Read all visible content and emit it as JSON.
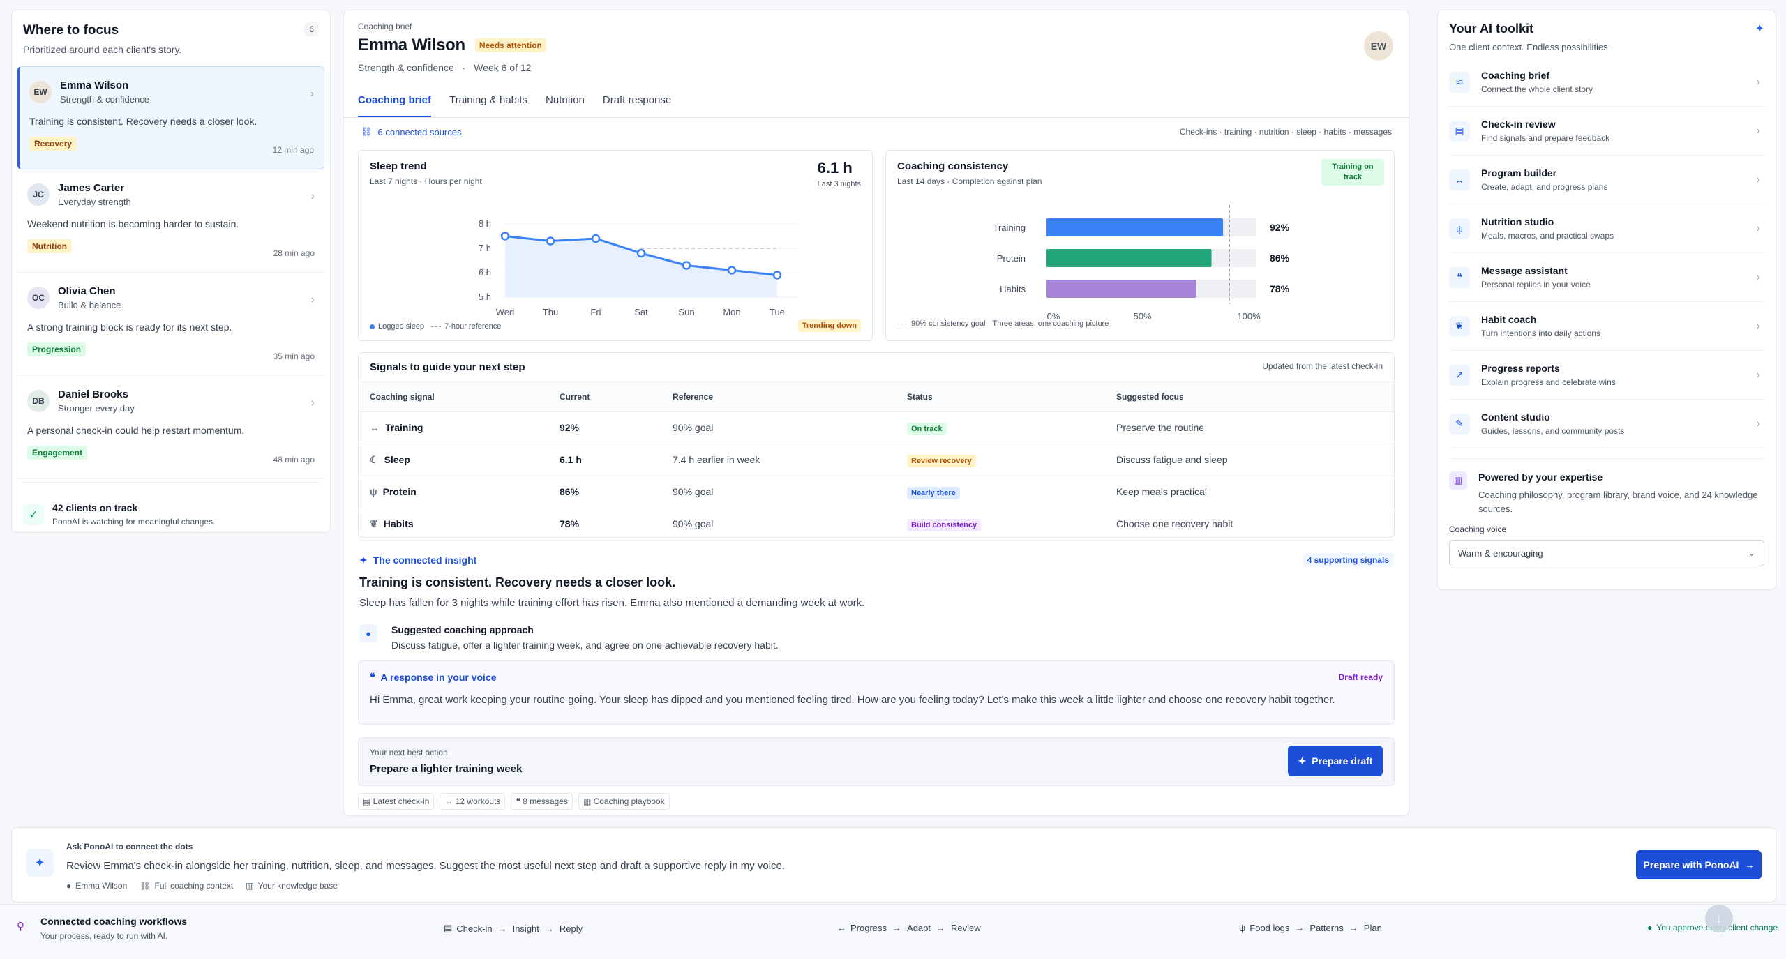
{
  "left": {
    "title": "Where to focus",
    "subtitle": "Prioritized around each client's story.",
    "count": "6",
    "clients": [
      {
        "initials": "EW",
        "name": "Emma Wilson",
        "program": "Strength & confidence",
        "message": "Training is consistent. Recovery needs a closer look.",
        "tag": "Recovery",
        "time": "12 min ago",
        "tag_bg": "#fef3c7",
        "tag_color": "#92400e",
        "avatar_bg": "#ede4d6"
      },
      {
        "initials": "JC",
        "name": "James Carter",
        "program": "Everyday strength",
        "message": "Weekend nutrition is becoming harder to sustain.",
        "tag": "Nutrition",
        "time": "28 min ago",
        "tag_bg": "#fef3c7",
        "tag_color": "#92400e",
        "avatar_bg": "#e0e7f1"
      },
      {
        "initials": "OC",
        "name": "Olivia Chen",
        "program": "Build & balance",
        "message": "A strong training block is ready for its next step.",
        "tag": "Progression",
        "time": "35 min ago",
        "tag_bg": "#dcfce7",
        "tag_color": "#15803d",
        "avatar_bg": "#e8e4f3"
      },
      {
        "initials": "DB",
        "name": "Daniel Brooks",
        "program": "Stronger every day",
        "message": "A personal check-in could help restart momentum.",
        "tag": "Engagement",
        "time": "48 min ago",
        "tag_bg": "#dcfce7",
        "tag_color": "#15803d",
        "avatar_bg": "#e1ece6"
      }
    ],
    "on_track_title": "42 clients on track",
    "on_track_sub": "PonoAI is watching for meaningful changes."
  },
  "header": {
    "eyebrow": "Coaching brief",
    "name": "Emma Wilson",
    "badge": "Needs attention",
    "program": "Strength & confidence",
    "sep": "·",
    "week": "Week 6 of 12",
    "avatar": "EW"
  },
  "tabs": [
    "Coaching brief",
    "Training & habits",
    "Nutrition",
    "Draft response"
  ],
  "sources": {
    "label": "6 connected sources",
    "list": "Check-ins · training · nutrition · sleep · habits · messages"
  },
  "sleep_card": {
    "title": "Sleep trend",
    "subtitle": "Last 7 nights · Hours per night",
    "big": "6.1 h",
    "big_sub": "Last 3 nights",
    "legend_logged": "Logged sleep",
    "legend_ref": "7-hour reference",
    "trend": "Trending down"
  },
  "consistency_card": {
    "title": "Coaching consistency",
    "subtitle": "Last 14 days · Completion against plan",
    "badge": "Training on track",
    "legend_goal": "90% consistency goal",
    "legend_note": "Three areas, one coaching picture"
  },
  "chart_data": [
    {
      "type": "line",
      "title": "Sleep trend",
      "x": [
        "Wed",
        "Thu",
        "Fri",
        "Sat",
        "Sun",
        "Mon",
        "Tue"
      ],
      "series": [
        {
          "name": "Logged sleep",
          "values": [
            7.5,
            7.3,
            7.4,
            6.8,
            6.3,
            6.1,
            5.9
          ],
          "color": "#3b82f6"
        }
      ],
      "reference": {
        "name": "7-hour reference",
        "value": 7
      },
      "yticks": [
        "5 h",
        "6 h",
        "7 h",
        "8 h"
      ],
      "ylim": [
        5,
        8
      ]
    },
    {
      "type": "bar",
      "title": "Coaching consistency",
      "categories": [
        "Training",
        "Protein",
        "Habits"
      ],
      "values": [
        92,
        86,
        78
      ],
      "value_labels": [
        "92%",
        "86%",
        "78%"
      ],
      "colors": [
        "#3b82f6",
        "#22a47a",
        "#a685d9"
      ],
      "goal": 90,
      "xticks": [
        "0%",
        "50%",
        "100%"
      ],
      "xlim": [
        0,
        100
      ]
    }
  ],
  "signals": {
    "title": "Signals to guide your next step",
    "updated": "Updated from the latest check-in",
    "columns": [
      "Coaching signal",
      "Current",
      "Reference",
      "Status",
      "Suggested focus"
    ],
    "rows": [
      {
        "signal": "Training",
        "current": "92%",
        "reference": "90% goal",
        "status": "On track",
        "focus": "Preserve the routine",
        "st_bg": "#dcfce7",
        "st_color": "#15803d",
        "icon": "↔"
      },
      {
        "signal": "Sleep",
        "current": "6.1 h",
        "reference": "7.4 h earlier in week",
        "status": "Review recovery",
        "focus": "Discuss fatigue and sleep",
        "st_bg": "#fef3c7",
        "st_color": "#b45309",
        "icon": "☾"
      },
      {
        "signal": "Protein",
        "current": "86%",
        "reference": "90% goal",
        "status": "Nearly there",
        "focus": "Keep meals practical",
        "st_bg": "#dbeafe",
        "st_color": "#1d4ed8",
        "icon": "ψ"
      },
      {
        "signal": "Habits",
        "current": "78%",
        "reference": "90% goal",
        "status": "Build consistency",
        "focus": "Choose one recovery habit",
        "st_bg": "#f3e8ff",
        "st_color": "#7e22ce",
        "icon": "❦"
      }
    ]
  },
  "insight": {
    "label": "The connected insight",
    "supporting": "4 supporting signals",
    "headline": "Training is consistent. Recovery needs a closer look.",
    "detail": "Sleep has fallen for 3 nights while training effort has risen. Emma also mentioned a demanding week at work.",
    "approach_title": "Suggested coaching approach",
    "approach_text": "Discuss fatigue, offer a lighter training week, and agree on one achievable recovery habit."
  },
  "voice": {
    "title": "A response in your voice",
    "status": "Draft ready",
    "text": "Hi Emma, great work keeping your routine going. Your sleep has dipped and you mentioned feeling tired. How are you feeling today? Let's make this week a little lighter and choose one recovery habit together."
  },
  "next_action": {
    "label": "Your next best action",
    "title": "Prepare a lighter training week",
    "button": "Prepare draft"
  },
  "chips": [
    "Latest check-in",
    "12 workouts",
    "8 messages",
    "Coaching playbook"
  ],
  "toolkit": {
    "title": "Your AI toolkit",
    "subtitle": "One client context. Endless possibilities.",
    "items": [
      {
        "name": "Coaching brief",
        "desc": "Connect the whole client story",
        "icon": "≋"
      },
      {
        "name": "Check-in review",
        "desc": "Find signals and prepare feedback",
        "icon": "▤"
      },
      {
        "name": "Program builder",
        "desc": "Create, adapt, and progress plans",
        "icon": "↔"
      },
      {
        "name": "Nutrition studio",
        "desc": "Meals, macros, and practical swaps",
        "icon": "ψ"
      },
      {
        "name": "Message assistant",
        "desc": "Personal replies in your voice",
        "icon": "❝"
      },
      {
        "name": "Habit coach",
        "desc": "Turn intentions into daily actions",
        "icon": "❦"
      },
      {
        "name": "Progress reports",
        "desc": "Explain progress and celebrate wins",
        "icon": "↗"
      },
      {
        "name": "Content studio",
        "desc": "Guides, lessons, and community posts",
        "icon": "✎"
      }
    ],
    "expertise_title": "Powered by your expertise",
    "expertise_text": "Coaching philosophy, program library, brand voice, and 24 knowledge sources.",
    "voice_label": "Coaching voice",
    "voice_value": "Warm & encouraging"
  },
  "ask": {
    "label": "Ask PonoAI to connect the dots",
    "prompt": "Review Emma's check-in alongside her training, nutrition, sleep, and messages. Suggest the most useful next step and draft a supportive reply in my voice.",
    "ctx": [
      "Emma Wilson",
      "Full coaching context",
      "Your knowledge base"
    ],
    "button": "Prepare with PonoAI"
  },
  "workflows": {
    "title": "Connected coaching workflows",
    "subtitle": "Your process, ready to run with AI.",
    "flows": [
      [
        "Check-in",
        "Insight",
        "Reply"
      ],
      [
        "Progress",
        "Adapt",
        "Review"
      ],
      [
        "Food logs",
        "Patterns",
        "Plan"
      ]
    ],
    "approve": "You approve every client change"
  }
}
